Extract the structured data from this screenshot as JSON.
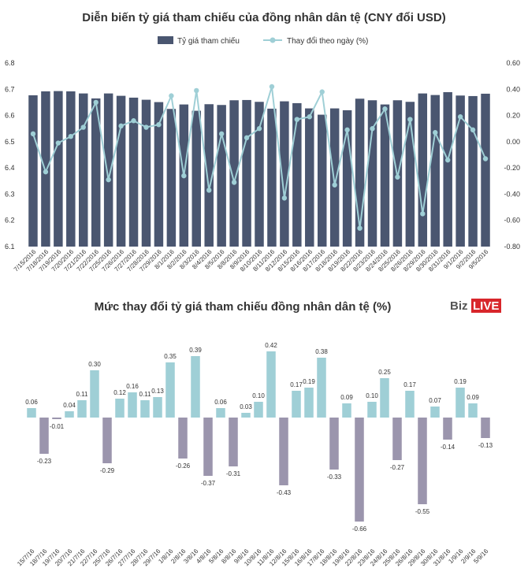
{
  "brand": {
    "part1": "Biz",
    "part2": "LIVE"
  },
  "colors": {
    "bar_dark": "#4a5670",
    "line_teal": "#9fcfd6",
    "bar_positive": "#9fcfd6",
    "bar_negative": "#9b95ad",
    "brand_red": "#d8262b"
  },
  "chart_data": [
    {
      "type": "bar+line",
      "title": "Diễn biến tỷ giá tham chiếu của đồng nhân dân tệ (CNY đổi USD)",
      "legend": {
        "bar": "Tỷ giá tham chiếu",
        "line": "Thay đổi theo ngày (%)",
        "position": "top-center"
      },
      "categories": [
        "7/15/2016",
        "7/18/2016",
        "7/19/2016",
        "7/20/2016",
        "7/21/2016",
        "7/22/2016",
        "7/25/2016",
        "7/26/2016",
        "7/27/2016",
        "7/28/2016",
        "7/29/2016",
        "8/1/2016",
        "8/2/2016",
        "8/3/2016",
        "8/4/2016",
        "8/5/2016",
        "8/8/2016",
        "8/9/2016",
        "8/10/2016",
        "8/11/2016",
        "8/12/2016",
        "8/15/2016",
        "8/16/2016",
        "8/17/2016",
        "8/18/2016",
        "8/19/2016",
        "8/22/2016",
        "8/23/2016",
        "8/24/2016",
        "8/25/2016",
        "8/26/2016",
        "8/29/2016",
        "8/30/2016",
        "8/31/2016",
        "9/1/2016",
        "9/2/2016",
        "9/5/2016"
      ],
      "bar_values": [
        6.677,
        6.692,
        6.693,
        6.692,
        6.684,
        6.665,
        6.684,
        6.675,
        6.668,
        6.66,
        6.651,
        6.625,
        6.642,
        6.618,
        6.643,
        6.64,
        6.658,
        6.659,
        6.652,
        6.626,
        6.654,
        6.647,
        6.627,
        6.603,
        6.627,
        6.62,
        6.664,
        6.658,
        6.642,
        6.658,
        6.652,
        6.684,
        6.678,
        6.689,
        6.676,
        6.674,
        6.683
      ],
      "line_values": [
        0.06,
        -0.23,
        -0.01,
        0.04,
        0.11,
        0.3,
        -0.29,
        0.12,
        0.16,
        0.11,
        0.13,
        0.35,
        -0.26,
        0.39,
        -0.37,
        0.06,
        -0.31,
        0.03,
        0.1,
        0.42,
        -0.43,
        0.17,
        0.19,
        0.38,
        -0.33,
        0.09,
        -0.66,
        0.1,
        0.25,
        -0.27,
        0.17,
        -0.55,
        0.07,
        -0.14,
        0.19,
        0.09,
        -0.13
      ],
      "y_left": {
        "min": 6.1,
        "max": 6.8,
        "ticks": [
          "6.1",
          "6.2",
          "6.3",
          "6.4",
          "6.5",
          "6.6",
          "6.7",
          "6.8"
        ]
      },
      "y_right": {
        "min": -0.8,
        "max": 0.6,
        "ticks": [
          "-0.80",
          "-0.60",
          "-0.40",
          "-0.20",
          "0.00",
          "0.20",
          "0.40",
          "0.60"
        ]
      }
    },
    {
      "type": "bar",
      "title": "Mức thay đổi tỷ giá tham chiếu đồng nhân dân tệ (%)",
      "categories": [
        "15/7/16",
        "18/7/16",
        "19/7/16",
        "20/7/16",
        "21/7/16",
        "22/7/16",
        "25/7/16",
        "26/7/16",
        "27/7/16",
        "28/7/16",
        "29/7/16",
        "1/8/16",
        "2/8/16",
        "3/8/16",
        "4/8/16",
        "5/8/16",
        "8/8/16",
        "9/8/16",
        "10/8/16",
        "11/8/16",
        "12/8/16",
        "15/8/16",
        "16/8/16",
        "17/8/16",
        "18/8/16",
        "19/8/16",
        "22/8/16",
        "23/8/16",
        "24/8/16",
        "25/8/16",
        "26/8/16",
        "29/8/16",
        "30/8/16",
        "31/8/16",
        "1/9/16",
        "2/9/16",
        "5/9/16"
      ],
      "values": [
        0.06,
        -0.23,
        -0.01,
        0.04,
        0.11,
        0.3,
        -0.29,
        0.12,
        0.16,
        0.11,
        0.13,
        0.35,
        -0.26,
        0.39,
        -0.37,
        0.06,
        -0.31,
        0.03,
        0.1,
        0.42,
        -0.43,
        0.17,
        0.19,
        0.38,
        -0.33,
        0.09,
        -0.66,
        0.1,
        0.25,
        -0.27,
        0.17,
        -0.55,
        0.07,
        -0.14,
        0.19,
        0.09,
        -0.13
      ],
      "labels": [
        "0.06",
        "-0.23",
        "-0.01",
        "0.04",
        "0.11",
        "0.30",
        "-0.29",
        "0.12",
        "0.16",
        "0.11",
        "0.13",
        "0.35",
        "-0.26",
        "0.39",
        "-0.37",
        "0.06",
        "-0.31",
        "0.03",
        "0.10",
        "0.42",
        "-0.43",
        "0.17",
        "0.19",
        "0.38",
        "-0.33",
        "0.09",
        "-0.66",
        "0.10",
        "0.25",
        "-0.27",
        "0.17",
        "-0.55",
        "0.07",
        "-0.14",
        "0.19",
        "0.09",
        "-0.13"
      ]
    }
  ]
}
